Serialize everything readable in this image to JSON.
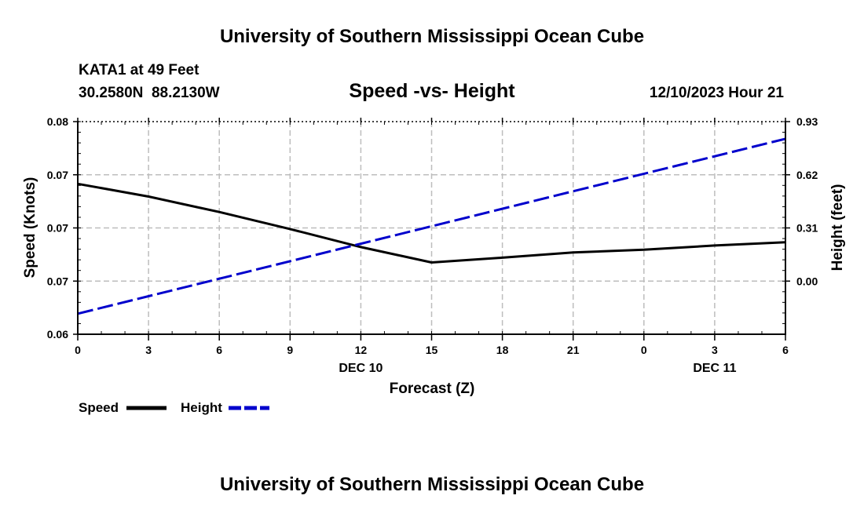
{
  "page_title": "University of Southern Mississippi Ocean Cube",
  "footer_title": "University of Southern Mississippi Ocean Cube",
  "station": {
    "name_line": "KATA1 at 49 Feet",
    "coords_line": "30.2580N  88.2130W"
  },
  "timestamp": "12/10/2023 Hour 21",
  "chart_data": {
    "type": "line",
    "title": "Speed -vs- Height",
    "xlabel": "Forecast (Z)",
    "ylabel_left": "Speed (Knots)",
    "ylabel_right": "Height (feet)",
    "x_tick_labels": [
      "0",
      "3",
      "6",
      "9",
      "12",
      "15",
      "18",
      "21",
      "0",
      "3",
      "6"
    ],
    "x_date_labels": [
      {
        "label": "DEC 10",
        "at_index": 4
      },
      {
        "label": "DEC 11",
        "at_index": 9
      }
    ],
    "x_range": [
      0,
      30
    ],
    "y_left_tick_labels": [
      "0.06",
      "0.07",
      "0.07",
      "0.07",
      "0.08"
    ],
    "y_left_range": [
      0.06,
      0.08
    ],
    "y_right_tick_labels": [
      "0.00",
      "0.31",
      "0.62",
      "0.93"
    ],
    "y_right_ticks": [
      0.0,
      0.31,
      0.62,
      0.93
    ],
    "y_right_range": [
      -0.31,
      0.93
    ],
    "grid": true,
    "series": [
      {
        "name": "Speed",
        "axis": "left",
        "color": "#000000",
        "style": "solid",
        "x": [
          0,
          3,
          6,
          9,
          12,
          15,
          18,
          21,
          24,
          27,
          30
        ],
        "values": [
          0.07415,
          0.07295,
          0.0715,
          0.0699,
          0.0682,
          0.06675,
          0.0672,
          0.0677,
          0.06795,
          0.06835,
          0.06865
        ]
      },
      {
        "name": "Height",
        "axis": "right",
        "color": "#0000cc",
        "style": "dashed",
        "x": [
          0,
          30
        ],
        "values": [
          -0.19,
          0.83
        ]
      }
    ],
    "legend": {
      "placement": "bottom-left",
      "items": [
        {
          "label": "Speed",
          "color": "#000000",
          "style": "solid"
        },
        {
          "label": "Height",
          "color": "#0000cc",
          "style": "dashed"
        }
      ]
    }
  }
}
